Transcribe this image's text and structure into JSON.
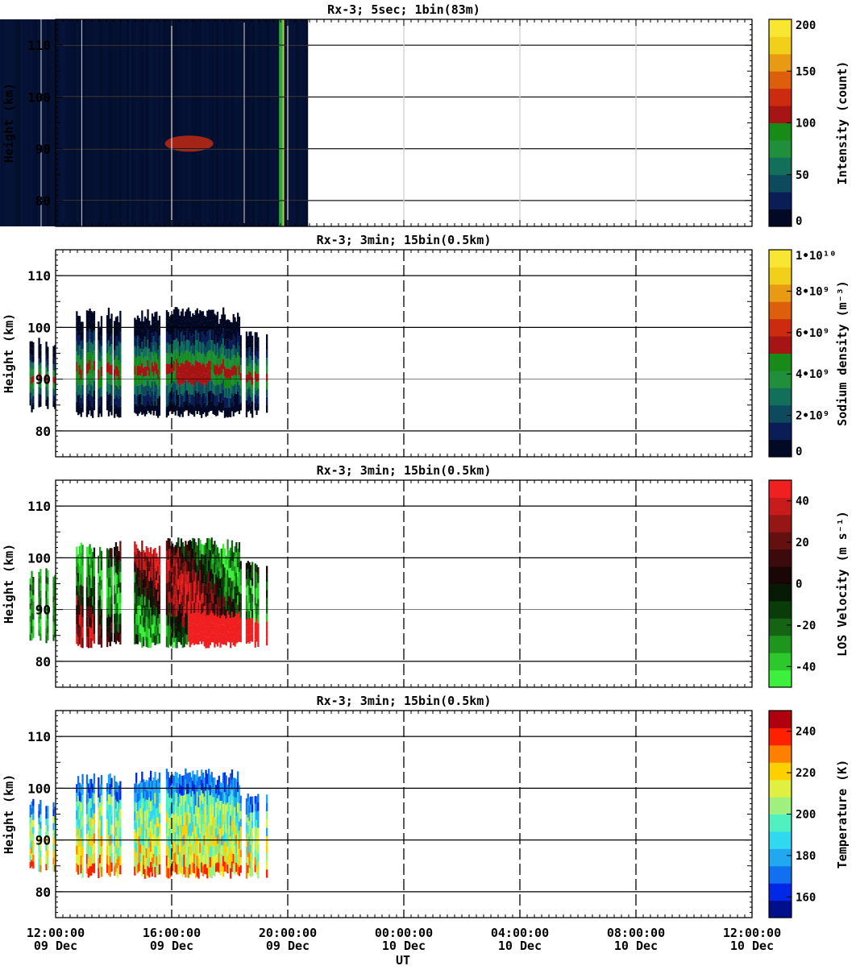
{
  "chart_data": [
    {
      "type": "heatmap",
      "title": "Rx-3;  5sec; 1bin(83m)",
      "ylabel": "Height (km)",
      "ylim": [
        75,
        115
      ],
      "yticks": [
        80,
        90,
        100,
        110
      ],
      "xlim_hours": [
        0,
        24
      ],
      "colorbar": {
        "label": "Intensity (count)",
        "range": [
          0,
          200
        ],
        "tick_values": [
          0,
          50,
          100,
          150,
          200
        ],
        "tick_labels": [
          "0",
          "50",
          "100",
          "150",
          "200"
        ],
        "colors": [
          "#020924",
          "#0a1d56",
          "#0e4a5e",
          "#12705a",
          "#1f8f3b",
          "#178a17",
          "#a61414",
          "#cc2b10",
          "#dd5f0b",
          "#e89b12",
          "#f2cf18",
          "#f8e632"
        ]
      },
      "series": []
    },
    {
      "type": "heatmap",
      "title": "Rx-3; 3min; 15bin(0.5km)",
      "ylabel": "Height (km)",
      "ylim": [
        75,
        115
      ],
      "yticks": [
        80,
        90,
        100,
        110
      ],
      "xlim_hours": [
        0,
        24
      ],
      "colorbar": {
        "label": "Sodium density (m⁻³)",
        "range": [
          0,
          10
        ],
        "tick_values": [
          0,
          2,
          4,
          6,
          8,
          10
        ],
        "tick_labels": [
          "0",
          "2•10⁹",
          "4•10⁹",
          "6•10⁹",
          "8•10⁹",
          "1•10¹⁰"
        ],
        "colors": [
          "#020924",
          "#0a1d56",
          "#0e4a5e",
          "#12705a",
          "#1f8f3b",
          "#178a17",
          "#a61414",
          "#cc2b10",
          "#dd5f0b",
          "#e89b12",
          "#f2cf18",
          "#f8e632"
        ]
      },
      "series": []
    },
    {
      "type": "heatmap",
      "title": "Rx-3; 3min; 15bin(0.5km)",
      "ylabel": "Height (km)",
      "ylim": [
        75,
        115
      ],
      "yticks": [
        80,
        90,
        100,
        110
      ],
      "xlim_hours": [
        0,
        24
      ],
      "colorbar": {
        "label": "LOS Velocity (m s⁻¹)",
        "range": [
          -50,
          50
        ],
        "tick_values": [
          -40,
          -20,
          0,
          20,
          40
        ],
        "tick_labels": [
          "-40",
          "-20",
          "0",
          "20",
          "40"
        ],
        "colors": [
          "#3cf03c",
          "#2cc82c",
          "#1e961e",
          "#146414",
          "#0a3c0a",
          "#061a06",
          "#1a0606",
          "#3c0a0a",
          "#641010",
          "#961616",
          "#c81c1c",
          "#f02020"
        ]
      },
      "series": []
    },
    {
      "type": "heatmap",
      "title": "Rx-3; 3min; 15bin(0.5km)",
      "ylabel": "Height (km)",
      "ylim": [
        75,
        115
      ],
      "yticks": [
        80,
        90,
        100,
        110
      ],
      "xlim_hours": [
        0,
        24
      ],
      "xlabel": "UT",
      "xticks": [
        {
          "time": "12:00:00",
          "date": "09 Dec"
        },
        {
          "time": "16:00:00",
          "date": "09 Dec"
        },
        {
          "time": "20:00:00",
          "date": "09 Dec"
        },
        {
          "time": "00:00:00",
          "date": "10 Dec"
        },
        {
          "time": "04:00:00",
          "date": "10 Dec"
        },
        {
          "time": "08:00:00",
          "date": "10 Dec"
        },
        {
          "time": "12:00:00",
          "date": "10 Dec"
        }
      ],
      "colorbar": {
        "label": "Temperature (K)",
        "range": [
          150,
          250
        ],
        "tick_values": [
          160,
          180,
          200,
          220,
          240
        ],
        "tick_labels": [
          "160",
          "180",
          "200",
          "220",
          "240"
        ],
        "colors": [
          "#00108c",
          "#0028e6",
          "#1070f0",
          "#20a8f0",
          "#30d8f0",
          "#50f0c0",
          "#a0f080",
          "#e0f040",
          "#ffd000",
          "#ff8000",
          "#ff2000",
          "#b00010"
        ]
      },
      "series": []
    }
  ]
}
